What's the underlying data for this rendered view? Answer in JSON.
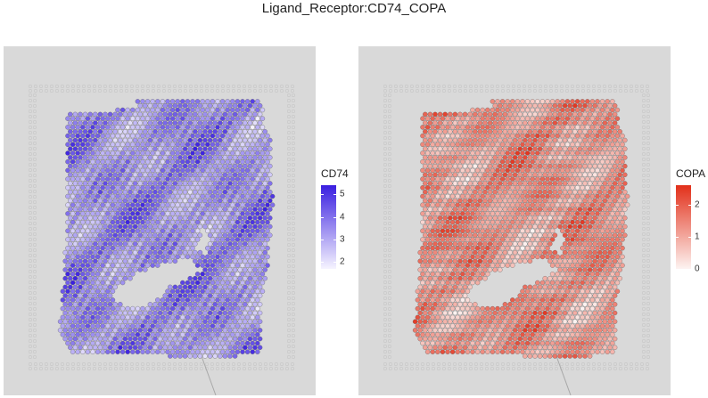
{
  "title": "Ligand_Receptor:CD74_COPA",
  "chart_data": [
    {
      "type": "heatmap",
      "subtype": "spatial-spot-map",
      "feature": "CD74",
      "legend_title": "CD74",
      "color_low": "#f6f4ff",
      "color_high": "#3a1fe0",
      "value_range": [
        1.7,
        5.4
      ],
      "legend_ticks": [
        "2",
        "3",
        "4",
        "5"
      ],
      "legend_tick_values": [
        2,
        3,
        4,
        5
      ],
      "grid": false,
      "legend_position": "right",
      "background_color": "#d9d9d9"
    },
    {
      "type": "heatmap",
      "subtype": "spatial-spot-map",
      "feature": "COPA",
      "legend_title": "COPA",
      "color_low": "#fdf3f1",
      "color_high": "#e2301a",
      "value_range": [
        0,
        2.6
      ],
      "legend_ticks": [
        "0",
        "1",
        "2"
      ],
      "legend_tick_values": [
        0,
        1,
        2
      ],
      "grid": false,
      "legend_position": "right",
      "background_color": "#d9d9d9"
    }
  ]
}
